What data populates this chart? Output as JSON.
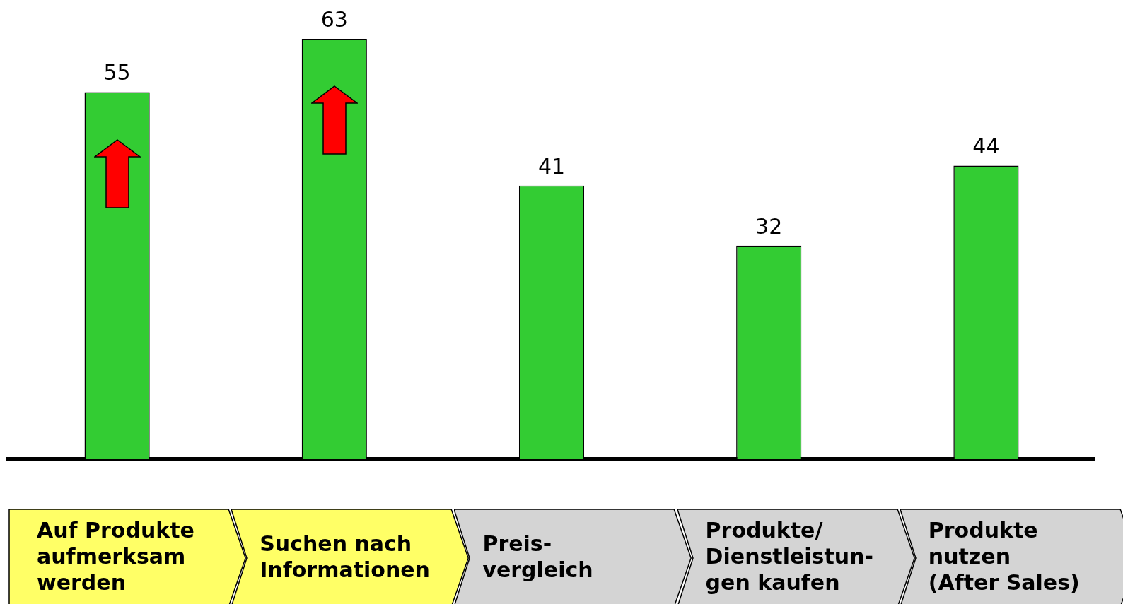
{
  "chart_data": {
    "type": "bar",
    "categories": [
      "Auf Produkte\naufmerksam\nwerden",
      "Suchen nach\nInformationen",
      "Preis-\nvergleich",
      "Produkte/\nDienstleistun-\ngen kaufen",
      "Produkte\nnutzen\n(After Sales)"
    ],
    "values": [
      55,
      63,
      41,
      32,
      44
    ],
    "color": "#33cc33",
    "data_labels": true
  }
}
